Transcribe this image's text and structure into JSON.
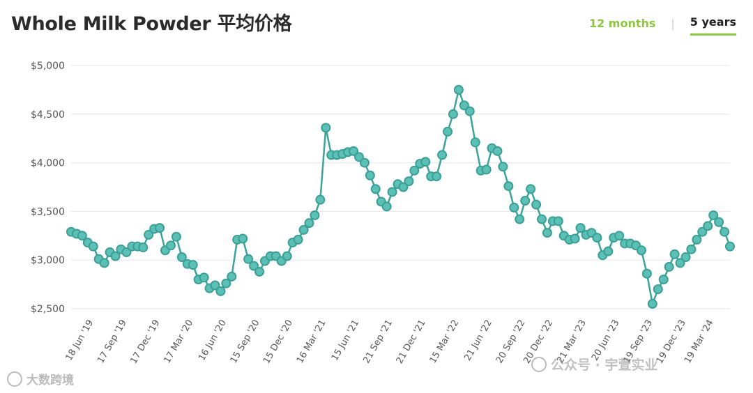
{
  "title": "Whole Milk Powder 平均价格",
  "tabs": {
    "months_label": "12 months",
    "separator": "|",
    "years_label": "5 years"
  },
  "watermarks": {
    "left": "大数跨境",
    "right": "公众号 · 宇萱实业"
  },
  "colors": {
    "line": "#3aa39a",
    "marker_fill": "#5cc0b6",
    "marker_stroke": "#3a9f95",
    "grid": "#e6e6e6",
    "accent": "#8cc63f"
  },
  "chart_data": {
    "type": "line",
    "title": "Whole Milk Powder 平均价格",
    "xlabel": "",
    "ylabel": "",
    "ylim": [
      2500,
      5000
    ],
    "y_ticks": [
      2500,
      3000,
      3500,
      4000,
      4500,
      5000
    ],
    "y_tick_labels": [
      "$2,500",
      "$3,000",
      "$3,500",
      "$4,000",
      "$4,500",
      "$5,000"
    ],
    "x_tick_labels": [
      {
        "index": 4,
        "label": "18 Jun '19"
      },
      {
        "index": 10,
        "label": "17 Sep '19"
      },
      {
        "index": 16,
        "label": "17 Dec '19"
      },
      {
        "index": 22,
        "label": "17 Mar '20"
      },
      {
        "index": 28,
        "label": "16 Jun '20"
      },
      {
        "index": 34,
        "label": "15 Sep '20"
      },
      {
        "index": 40,
        "label": "15 Dec '20"
      },
      {
        "index": 46,
        "label": "16 Mar '21"
      },
      {
        "index": 52,
        "label": "15 Jun '21"
      },
      {
        "index": 58,
        "label": "21 Sep '21"
      },
      {
        "index": 64,
        "label": "21 Dec '21"
      },
      {
        "index": 70,
        "label": "15 Mar '22"
      },
      {
        "index": 76,
        "label": "21 Jun '22"
      },
      {
        "index": 82,
        "label": "20 Sep '22"
      },
      {
        "index": 87,
        "label": "20 Dec '22"
      },
      {
        "index": 93,
        "label": "21 Mar '23"
      },
      {
        "index": 99,
        "label": "20 Jun '23"
      },
      {
        "index": 105,
        "label": "19 Sep '23"
      },
      {
        "index": 111,
        "label": "19 Dec '23"
      },
      {
        "index": 116,
        "label": "19 Mar '24"
      }
    ],
    "grid": true,
    "legend": "none",
    "series": [
      {
        "values": [
          3290,
          3270,
          3250,
          3180,
          3140,
          3010,
          2970,
          3080,
          3040,
          3110,
          3080,
          3140,
          3140,
          3130,
          3260,
          3320,
          3330,
          3100,
          3150,
          3240,
          3030,
          2960,
          2950,
          2800,
          2820,
          2710,
          2740,
          2680,
          2760,
          2830,
          3210,
          3220,
          3010,
          2940,
          2880,
          2990,
          3040,
          3040,
          2990,
          3040,
          3180,
          3210,
          3310,
          3380,
          3460,
          3620,
          4360,
          4080,
          4080,
          4090,
          4110,
          4120,
          4060,
          4000,
          3870,
          3730,
          3600,
          3550,
          3700,
          3780,
          3750,
          3810,
          3920,
          3990,
          4010,
          3860,
          3860,
          4080,
          4320,
          4500,
          4750,
          4590,
          4530,
          4210,
          3920,
          3930,
          4150,
          4120,
          3960,
          3760,
          3540,
          3420,
          3610,
          3730,
          3570,
          3420,
          3280,
          3400,
          3400,
          3250,
          3210,
          3220,
          3330,
          3260,
          3280,
          3230,
          3050,
          3090,
          3230,
          3250,
          3170,
          3170,
          3150,
          3100,
          2860,
          2550,
          2700,
          2800,
          2930,
          3060,
          2970,
          3030,
          3110,
          3210,
          3290,
          3350,
          3460,
          3390,
          3290,
          3140
        ]
      }
    ]
  }
}
